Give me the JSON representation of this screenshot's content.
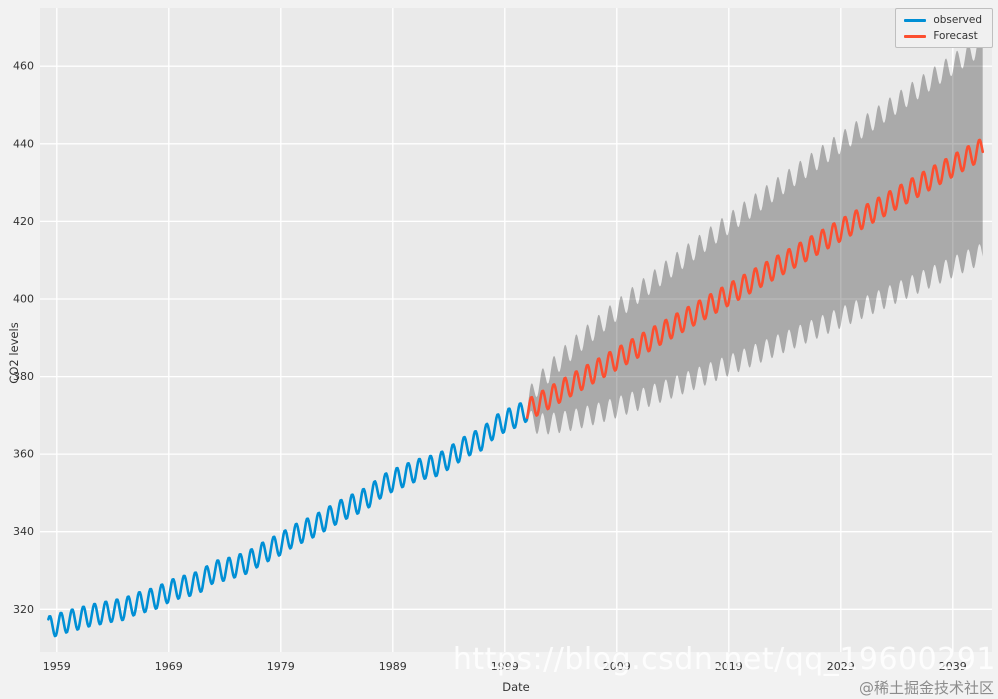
{
  "watermark": {
    "url_text": "https://blog.csdn.net/qq_19600291",
    "community_text": "@稀土掘金技术社区"
  },
  "colors": {
    "figure_bg": "#F2F2F2",
    "axes_bg": "#EAEAEA",
    "grid": "#FFFFFF",
    "tick_text": "#333333",
    "observed": "#008FD5",
    "forecast": "#FC4F30",
    "band": "#000000"
  },
  "chart_data": {
    "type": "line",
    "title": "",
    "xlabel": "Date",
    "ylabel": "CO2 levels",
    "xlim": [
      1957.5,
      2042.5
    ],
    "ylim": [
      309,
      475
    ],
    "x_ticks": [
      1959,
      1969,
      1979,
      1989,
      1999,
      2009,
      2019,
      2029,
      2039
    ],
    "y_ticks": [
      320,
      340,
      360,
      380,
      400,
      420,
      440,
      460
    ],
    "grid": true,
    "seasonal_amplitude": 2.8,
    "legend": {
      "position": "upper right",
      "entries": [
        {
          "label": "observed",
          "color": "#008FD5"
        },
        {
          "label": "Forecast",
          "color": "#FC4F30"
        }
      ]
    },
    "series": [
      {
        "name": "observed",
        "color": "#008FD5",
        "linewidth": 2.6,
        "start": 1958.25,
        "end": 2001.0,
        "anchor_years": [
          1958,
          1959,
          1960,
          1961,
          1962,
          1963,
          1964,
          1965,
          1966,
          1967,
          1968,
          1969,
          1970,
          1971,
          1972,
          1973,
          1974,
          1975,
          1976,
          1977,
          1978,
          1979,
          1980,
          1981,
          1982,
          1983,
          1984,
          1985,
          1986,
          1987,
          1988,
          1989,
          1990,
          1991,
          1992,
          1993,
          1994,
          1995,
          1996,
          1997,
          1998,
          1999,
          2000,
          2001
        ],
        "anchor_values": [
          315.2,
          315.98,
          316.91,
          317.64,
          318.45,
          318.99,
          319.62,
          320.04,
          321.37,
          322.18,
          323.05,
          324.62,
          325.68,
          326.32,
          327.46,
          329.68,
          330.19,
          331.12,
          332.03,
          333.84,
          335.41,
          336.84,
          338.76,
          340.12,
          341.48,
          343.15,
          344.85,
          346.35,
          347.61,
          349.31,
          351.69,
          353.2,
          354.45,
          355.7,
          356.54,
          357.21,
          358.96,
          360.97,
          362.74,
          363.88,
          366.84,
          368.54,
          369.71,
          371.32
        ]
      },
      {
        "name": "Forecast",
        "color": "#FC4F30",
        "linewidth": 2.6,
        "start": 2001.0,
        "end": 2041.7,
        "anchor_years": [
          2001,
          2041.7
        ],
        "anchor_values": [
          371.3,
          438.8
        ]
      }
    ],
    "confidence_band": {
      "start": 2001.0,
      "end": 2041.7,
      "start_half_width": 1.0,
      "end_half_width": 27.0,
      "growth": "sqrt",
      "color": "#000000",
      "opacity": 0.27
    }
  }
}
